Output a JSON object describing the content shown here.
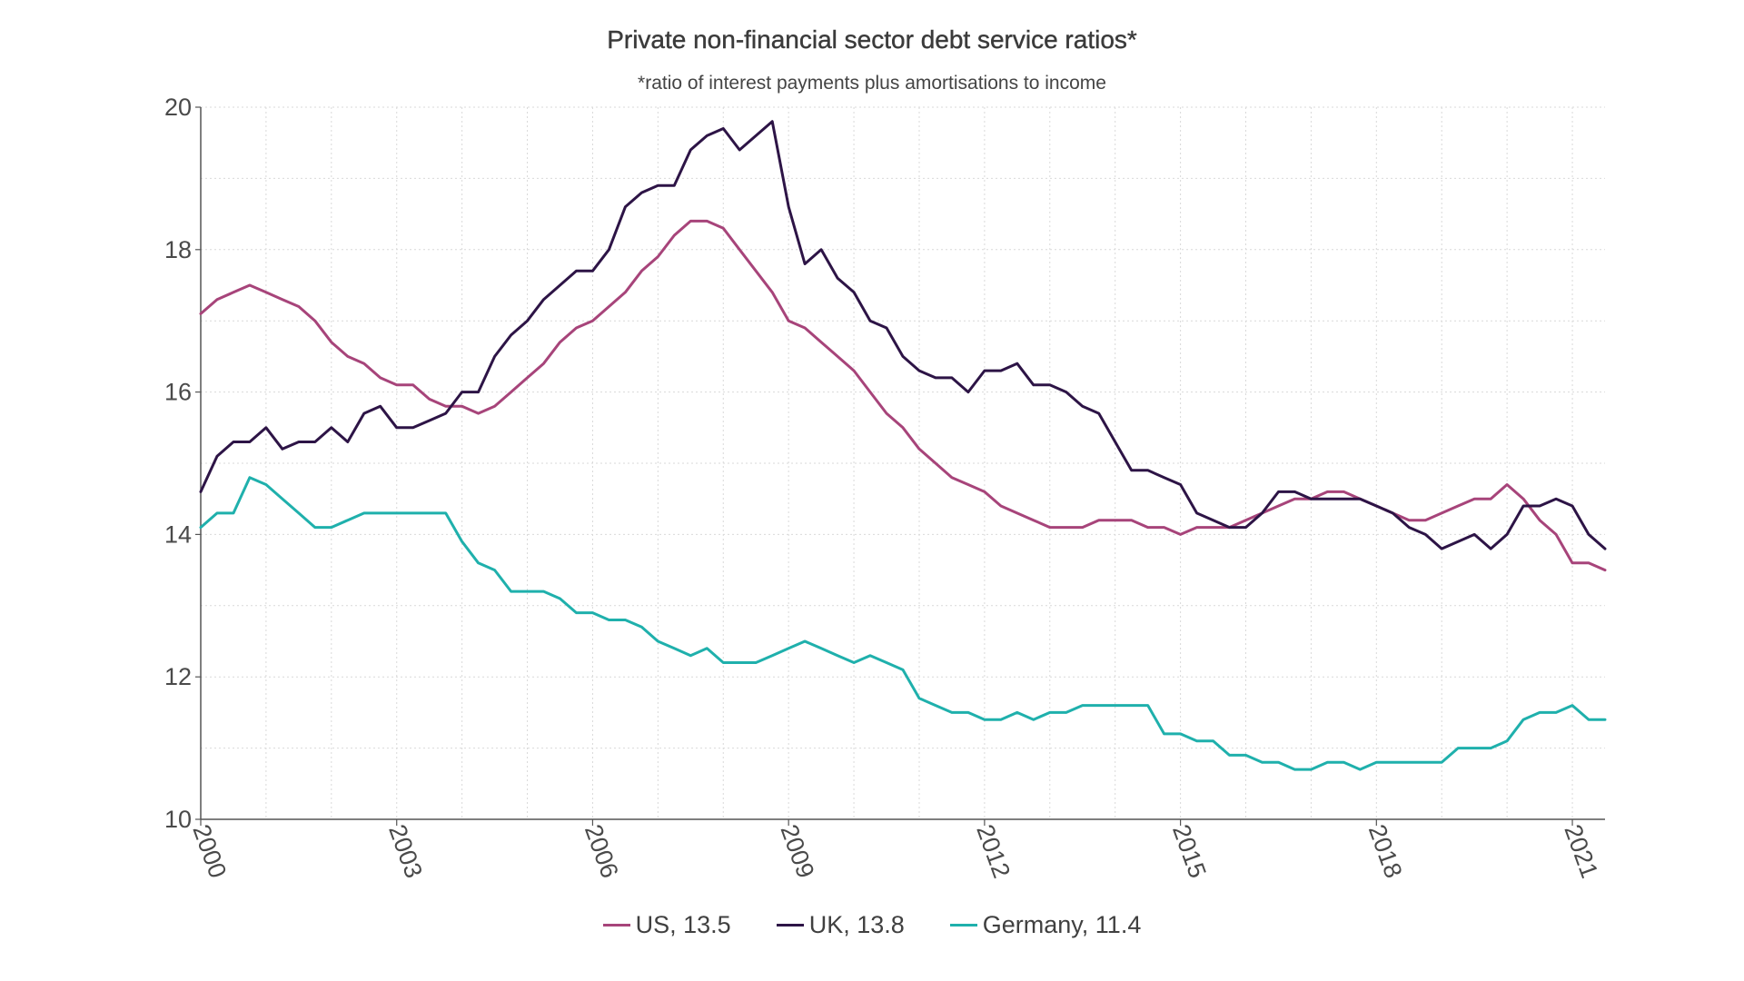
{
  "chart_data": {
    "type": "line",
    "title": "Private non-financial sector debt service ratios*",
    "subtitle": "*ratio of interest payments plus amortisations to income",
    "xlabel": "",
    "ylabel": "",
    "ylim": [
      10,
      20
    ],
    "xlim": [
      2000.0,
      2021.5
    ],
    "y_ticks": [
      "10",
      "12",
      "14",
      "16",
      "18",
      "20"
    ],
    "x_ticks": [
      "2000",
      "2003",
      "2006",
      "2009",
      "2012",
      "2015",
      "2018",
      "2021"
    ],
    "grid": true,
    "legend_position": "bottom",
    "x_start": 2000.0,
    "x_step": 0.25,
    "series": [
      {
        "name": "US",
        "legend_label": "US, 13.5",
        "color": "#a7447a",
        "values": [
          17.1,
          17.3,
          17.4,
          17.5,
          17.4,
          17.3,
          17.2,
          17.0,
          16.7,
          16.5,
          16.4,
          16.2,
          16.1,
          16.1,
          15.9,
          15.8,
          15.8,
          15.7,
          15.8,
          16.0,
          16.2,
          16.4,
          16.7,
          16.9,
          17.0,
          17.2,
          17.4,
          17.7,
          17.9,
          18.2,
          18.4,
          18.4,
          18.3,
          18.0,
          17.7,
          17.4,
          17.0,
          16.9,
          16.7,
          16.5,
          16.3,
          16.0,
          15.7,
          15.5,
          15.2,
          15.0,
          14.8,
          14.7,
          14.6,
          14.4,
          14.3,
          14.2,
          14.1,
          14.1,
          14.1,
          14.2,
          14.2,
          14.2,
          14.1,
          14.1,
          14.0,
          14.1,
          14.1,
          14.1,
          14.2,
          14.3,
          14.4,
          14.5,
          14.5,
          14.6,
          14.6,
          14.5,
          14.4,
          14.3,
          14.2,
          14.2,
          14.3,
          14.4,
          14.5,
          14.5,
          14.7,
          14.5,
          14.2,
          14.0,
          13.6,
          13.6,
          13.5
        ]
      },
      {
        "name": "UK",
        "legend_label": "UK, 13.8",
        "color": "#2d1446",
        "values": [
          14.6,
          15.1,
          15.3,
          15.3,
          15.5,
          15.2,
          15.3,
          15.3,
          15.5,
          15.3,
          15.7,
          15.8,
          15.5,
          15.5,
          15.6,
          15.7,
          16.0,
          16.0,
          16.5,
          16.8,
          17.0,
          17.3,
          17.5,
          17.7,
          17.7,
          18.0,
          18.6,
          18.8,
          18.9,
          18.9,
          19.4,
          19.6,
          19.7,
          19.4,
          19.6,
          19.8,
          18.6,
          17.8,
          18.0,
          17.6,
          17.4,
          17.0,
          16.9,
          16.5,
          16.3,
          16.2,
          16.2,
          16.0,
          16.3,
          16.3,
          16.4,
          16.1,
          16.1,
          16.0,
          15.8,
          15.7,
          15.3,
          14.9,
          14.9,
          14.8,
          14.7,
          14.3,
          14.2,
          14.1,
          14.1,
          14.3,
          14.6,
          14.6,
          14.5,
          14.5,
          14.5,
          14.5,
          14.4,
          14.3,
          14.1,
          14.0,
          13.8,
          13.9,
          14.0,
          13.8,
          14.0,
          14.4,
          14.4,
          14.5,
          14.4,
          14.0,
          13.8
        ]
      },
      {
        "name": "Germany",
        "legend_label": "Germany, 11.4",
        "color": "#1fb0ac",
        "values": [
          14.1,
          14.3,
          14.3,
          14.8,
          14.7,
          14.5,
          14.3,
          14.1,
          14.1,
          14.2,
          14.3,
          14.3,
          14.3,
          14.3,
          14.3,
          14.3,
          13.9,
          13.6,
          13.5,
          13.2,
          13.2,
          13.2,
          13.1,
          12.9,
          12.9,
          12.8,
          12.8,
          12.7,
          12.5,
          12.4,
          12.3,
          12.4,
          12.2,
          12.2,
          12.2,
          12.3,
          12.4,
          12.5,
          12.4,
          12.3,
          12.2,
          12.3,
          12.2,
          12.1,
          11.7,
          11.6,
          11.5,
          11.5,
          11.4,
          11.4,
          11.5,
          11.4,
          11.5,
          11.5,
          11.6,
          11.6,
          11.6,
          11.6,
          11.6,
          11.2,
          11.2,
          11.1,
          11.1,
          10.9,
          10.9,
          10.8,
          10.8,
          10.7,
          10.7,
          10.8,
          10.8,
          10.7,
          10.8,
          10.8,
          10.8,
          10.8,
          10.8,
          11.0,
          11.0,
          11.0,
          11.1,
          11.4,
          11.5,
          11.5,
          11.6,
          11.4,
          11.4
        ]
      }
    ]
  }
}
